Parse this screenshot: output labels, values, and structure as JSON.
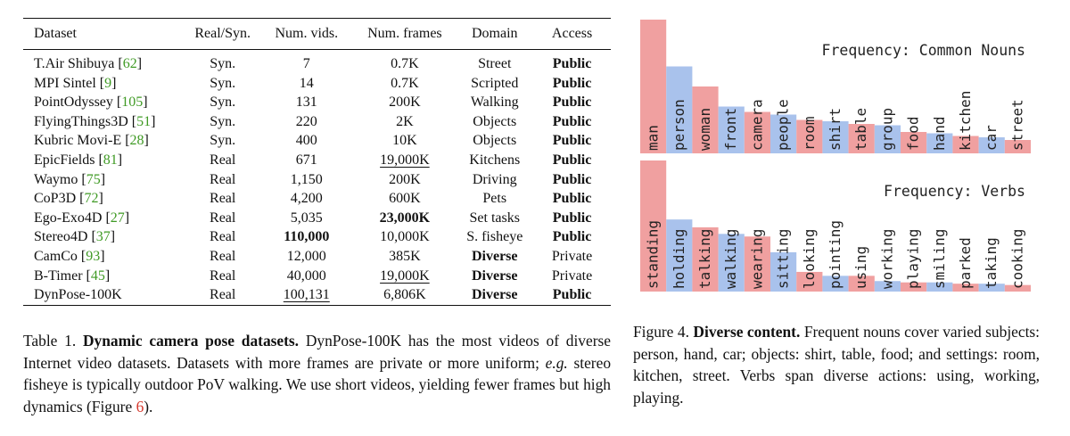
{
  "table": {
    "headers": [
      "Dataset",
      "Real/Syn.",
      "Num. vids.",
      "Num. frames",
      "Domain",
      "Access"
    ],
    "rows": [
      {
        "name": "T.Air Shibuya",
        "ref": "62",
        "type": "Syn.",
        "vids": "7",
        "frames": "0.7K",
        "domain": "Street",
        "access": "Public"
      },
      {
        "name": "MPI Sintel",
        "ref": "9",
        "type": "Syn.",
        "vids": "14",
        "frames": "0.7K",
        "domain": "Scripted",
        "access": "Public"
      },
      {
        "name": "PointOdyssey",
        "ref": "105",
        "type": "Syn.",
        "vids": "131",
        "frames": "200K",
        "domain": "Walking",
        "access": "Public"
      },
      {
        "name": "FlyingThings3D",
        "ref": "51",
        "type": "Syn.",
        "vids": "220",
        "frames": "2K",
        "domain": "Objects",
        "access": "Public"
      },
      {
        "name": "Kubric Movi-E",
        "ref": "28",
        "type": "Syn.",
        "vids": "400",
        "frames": "10K",
        "domain": "Objects",
        "access": "Public"
      },
      {
        "name": "EpicFields",
        "ref": "81",
        "type": "Real",
        "vids": "671",
        "frames": "19,000K",
        "domain": "Kitchens",
        "access": "Public"
      },
      {
        "name": "Waymo",
        "ref": "75",
        "type": "Real",
        "vids": "1,150",
        "frames": "200K",
        "domain": "Driving",
        "access": "Public"
      },
      {
        "name": "CoP3D",
        "ref": "72",
        "type": "Real",
        "vids": "4,200",
        "frames": "600K",
        "domain": "Pets",
        "access": "Public"
      },
      {
        "name": "Ego-Exo4D",
        "ref": "27",
        "type": "Real",
        "vids": "5,035",
        "frames": "23,000K",
        "domain": "Set tasks",
        "access": "Public"
      },
      {
        "name": "Stereo4D",
        "ref": "37",
        "type": "Real",
        "vids": "110,000",
        "frames": "10,000K",
        "domain": "S. fisheye",
        "access": "Public"
      },
      {
        "name": "CamCo",
        "ref": "93",
        "type": "Real",
        "vids": "12,000",
        "frames": "385K",
        "domain": "Diverse",
        "access": "Private"
      },
      {
        "name": "B-Timer",
        "ref": "45",
        "type": "Real",
        "vids": "40,000",
        "frames": "19,000K",
        "domain": "Diverse",
        "access": "Private"
      },
      {
        "name": "DynPose-100K",
        "ref": "",
        "type": "Real",
        "vids": "100,131",
        "frames": "6,806K",
        "domain": "Diverse",
        "access": "Public"
      }
    ]
  },
  "caption1": {
    "label": "Table 1.",
    "title": "Dynamic camera pose datasets.",
    "body_a": "DynPose-100K has the most videos of diverse Internet video datasets. Datasets with more frames are private or more uniform;",
    "eg": "e.g.",
    "body_b": "stereo fisheye is typically outdoor PoV walking.  We use short videos, yielding fewer frames but high dynamics (Figure",
    "fig_ref": "6",
    "body_c": ")."
  },
  "caption2": {
    "label": "Figure 4.",
    "title": "Diverse content.",
    "body": "Frequent nouns cover varied subjects: person, hand, car; objects: shirt, table, food; and settings: room, kitchen, street. Verbs span diverse actions: using, working, playing."
  },
  "chart_data": [
    {
      "type": "bar",
      "title": "Frequency: Common Nouns",
      "categories": [
        "man",
        "person",
        "woman",
        "front",
        "camera",
        "people",
        "room",
        "shirt",
        "table",
        "group",
        "food",
        "hand",
        "kitchen",
        "car",
        "street"
      ],
      "values": [
        100,
        65,
        50,
        35,
        31,
        29,
        25,
        24,
        22,
        21,
        16,
        15,
        13,
        12,
        10
      ],
      "xlabel": "",
      "ylabel": "",
      "ylim": [
        0,
        100
      ],
      "colors": {
        "odd": "#f0a0a0",
        "even": "#a9c2ec"
      }
    },
    {
      "type": "bar",
      "title": "Frequency: Verbs",
      "categories": [
        "standing",
        "holding",
        "talking",
        "walking",
        "wearing",
        "sitting",
        "looking",
        "pointing",
        "using",
        "working",
        "playing",
        "smiling",
        "parked",
        "taking",
        "cooking"
      ],
      "values": [
        100,
        55,
        49,
        44,
        42,
        30,
        15,
        12,
        12,
        8,
        7,
        7,
        6,
        6,
        5
      ],
      "xlabel": "",
      "ylabel": "",
      "ylim": [
        0,
        100
      ],
      "colors": {
        "odd": "#f0a0a0",
        "even": "#a9c2ec"
      }
    }
  ]
}
